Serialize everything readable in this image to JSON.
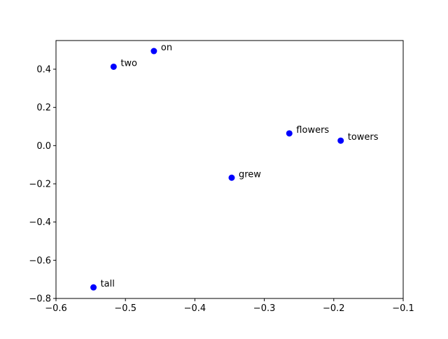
{
  "chart_data": {
    "type": "scatter",
    "title": "",
    "xlabel": "",
    "ylabel": "",
    "xlim": [
      -0.6,
      -0.1
    ],
    "ylim": [
      -0.8,
      0.55
    ],
    "xticks": [
      "−0.6",
      "−0.5",
      "−0.4",
      "−0.3",
      "−0.2",
      "−0.1"
    ],
    "yticks": [
      "−0.8",
      "−0.6",
      "−0.4",
      "−0.2",
      "0.0",
      "0.2",
      "0.4"
    ],
    "xtick_values": [
      -0.6,
      -0.5,
      -0.4,
      -0.3,
      -0.2,
      -0.1
    ],
    "ytick_values": [
      -0.8,
      -0.6,
      -0.4,
      -0.2,
      0.0,
      0.2,
      0.4
    ],
    "grid": false,
    "marker_color": "#0000ff",
    "points": [
      {
        "label": "on",
        "x": -0.459,
        "y": 0.495
      },
      {
        "label": "two",
        "x": -0.517,
        "y": 0.413
      },
      {
        "label": "flowers",
        "x": -0.264,
        "y": 0.064
      },
      {
        "label": "towers",
        "x": -0.19,
        "y": 0.026
      },
      {
        "label": "grew",
        "x": -0.347,
        "y": -0.168
      },
      {
        "label": "tall",
        "x": -0.546,
        "y": -0.742
      }
    ]
  }
}
